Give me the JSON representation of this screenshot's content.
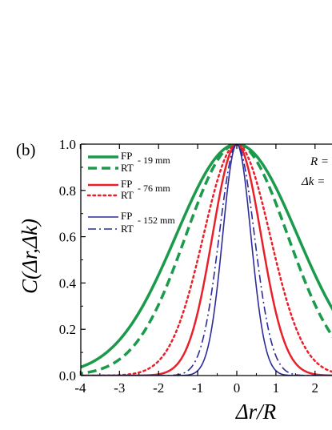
{
  "panel_label": "(b)",
  "chart_data": {
    "type": "line",
    "xlabel": "Δr/R",
    "ylabel": "C(Δr,Δk)",
    "xlim": [
      -4,
      2.5
    ],
    "ylim": [
      0,
      1
    ],
    "x_ticks": [
      -4,
      -3,
      -2,
      -1,
      0,
      1,
      2
    ],
    "y_ticks": [
      0.0,
      0.2,
      0.4,
      0.6,
      0.8,
      1.0
    ],
    "x_tick_labels": [
      "-4",
      "-3",
      "-2",
      "-1",
      "0",
      "1",
      "2"
    ],
    "y_tick_labels": [
      "0.0",
      "0.2",
      "0.4",
      "0.6",
      "0.8",
      "1.0"
    ],
    "grid": false,
    "legend_position": "top-left",
    "legend_groups": [
      {
        "label": "- 19 mm",
        "entries": [
          "FP",
          "RT"
        ]
      },
      {
        "label": "- 76 mm",
        "entries": [
          "FP",
          "RT"
        ]
      },
      {
        "label": "- 152 mm",
        "entries": [
          "FP",
          "RT"
        ]
      }
    ],
    "annotations": [
      "R =",
      "Δk ="
    ],
    "series": [
      {
        "name": "FP",
        "group": "19 mm",
        "color": "#1a9a4a",
        "dash": "solid",
        "width": 3.5,
        "sigma": 1.55
      },
      {
        "name": "RT",
        "group": "19 mm",
        "color": "#1a9a4a",
        "dash": "dashed",
        "width": 3.5,
        "sigma": 1.3
      },
      {
        "name": "FP",
        "group": "76 mm",
        "color": "#e8202a",
        "dash": "solid",
        "width": 2.5,
        "sigma": 0.62
      },
      {
        "name": "RT",
        "group": "76 mm",
        "color": "#e8202a",
        "dash": "dotted",
        "width": 2.5,
        "sigma": 0.85
      },
      {
        "name": "FP",
        "group": "152 mm",
        "color": "#2b2b9a",
        "dash": "solid",
        "width": 1.6,
        "sigma": 0.36
      },
      {
        "name": "RT",
        "group": "152 mm",
        "color": "#2b2b9a",
        "dash": "dashdot",
        "width": 1.6,
        "sigma": 0.45
      }
    ]
  }
}
